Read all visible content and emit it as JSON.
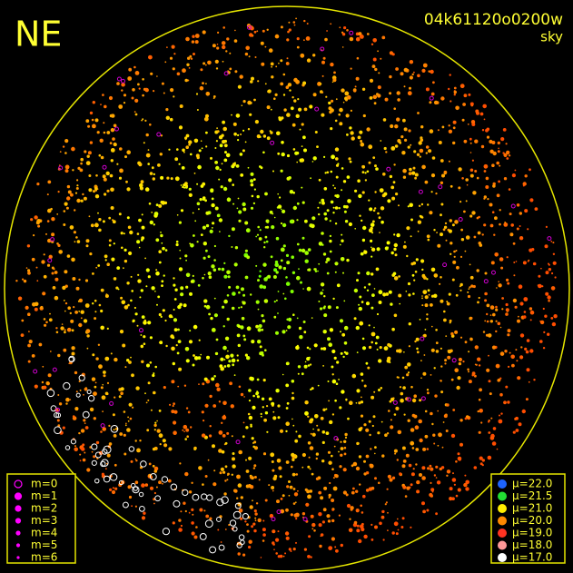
{
  "header": {
    "direction": "NE",
    "frame_id": "04k61120o0200w",
    "mode": "sky"
  },
  "legend_magnitude": [
    "m=0",
    "m=1",
    "m=2",
    "m=3",
    "m=4",
    "m=5",
    "m=6"
  ],
  "legend_brightness": [
    "μ=22.0",
    "μ=21.5",
    "μ=21.0",
    "μ=20.0",
    "μ=19.0",
    "μ=18.0",
    "μ=17.0"
  ]
}
